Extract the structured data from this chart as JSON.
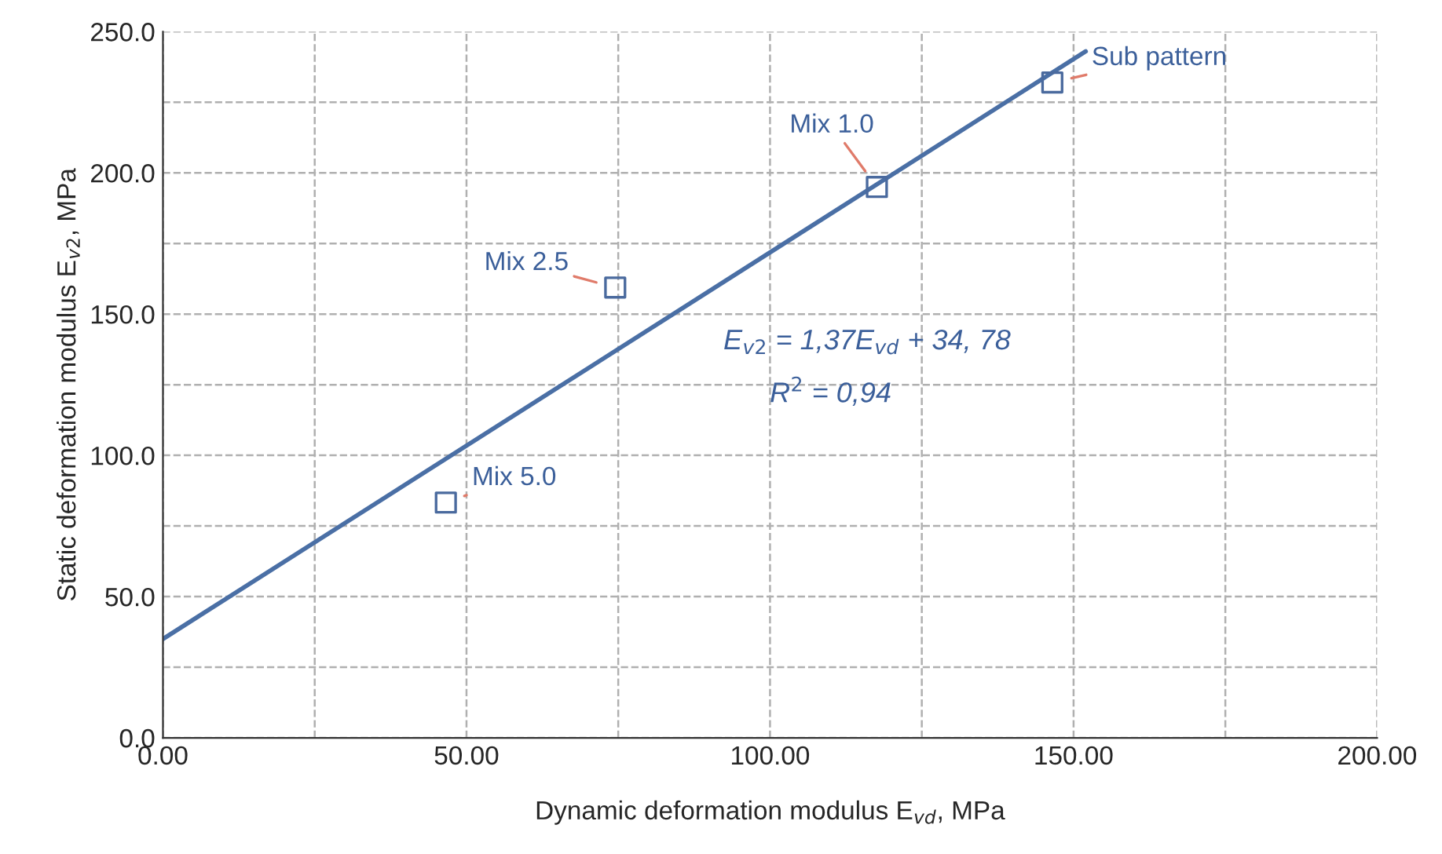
{
  "chart_data": {
    "type": "scatter",
    "xlabel": "Dynamic deformation modulus E$_{vd}$, MPa",
    "ylabel": "Static deformation modulus E$_{v2}$, MPa",
    "xlim": [
      0,
      200
    ],
    "ylim": [
      0,
      250
    ],
    "xticks": [
      {
        "value": 0,
        "label": "0.00"
      },
      {
        "value": 25,
        "label": null
      },
      {
        "value": 50,
        "label": "50.00"
      },
      {
        "value": 75,
        "label": null
      },
      {
        "value": 100,
        "label": "100.00"
      },
      {
        "value": 125,
        "label": null
      },
      {
        "value": 150,
        "label": "150.00"
      },
      {
        "value": 175,
        "label": null
      },
      {
        "value": 200,
        "label": "200.00"
      }
    ],
    "yticks": [
      {
        "value": 0,
        "label": "0.0"
      },
      {
        "value": 25,
        "label": null
      },
      {
        "value": 50,
        "label": "50.0"
      },
      {
        "value": 75,
        "label": null
      },
      {
        "value": 100,
        "label": "100.0"
      },
      {
        "value": 125,
        "label": null
      },
      {
        "value": 150,
        "label": "150.0"
      },
      {
        "value": 175,
        "label": null
      },
      {
        "value": 200,
        "label": "200.0"
      },
      {
        "value": 225,
        "label": null
      },
      {
        "value": 250,
        "label": "250.0"
      }
    ],
    "grid": true,
    "series": [
      {
        "color": "#4a6a9e",
        "marker": "square",
        "x": [
          46.6,
          74.5,
          117.6,
          146.5
        ],
        "values": [
          83.3,
          159.4,
          195,
          232
        ]
      },
      {
        "type": "line",
        "color": "#4a6fa5",
        "marker": "none",
        "line_style": "solid",
        "x": [
          0,
          152
        ],
        "values": [
          35,
          243
        ]
      }
    ],
    "annotations": [
      {
        "text": "Mix 5.0",
        "x": 46.6,
        "y": 83.3
      },
      {
        "text": "Mix 2.5",
        "x": 74.5,
        "y": 159.4
      },
      {
        "text": "Mix 1.0",
        "x": 117.6,
        "y": 195
      },
      {
        "text": "Sub pattern",
        "x": 146.5,
        "y": 232
      },
      "E$_{v2}$ = 1,37E$_{vd}$ + 34, 78",
      "R$^{2}$ = 0,94"
    ]
  }
}
